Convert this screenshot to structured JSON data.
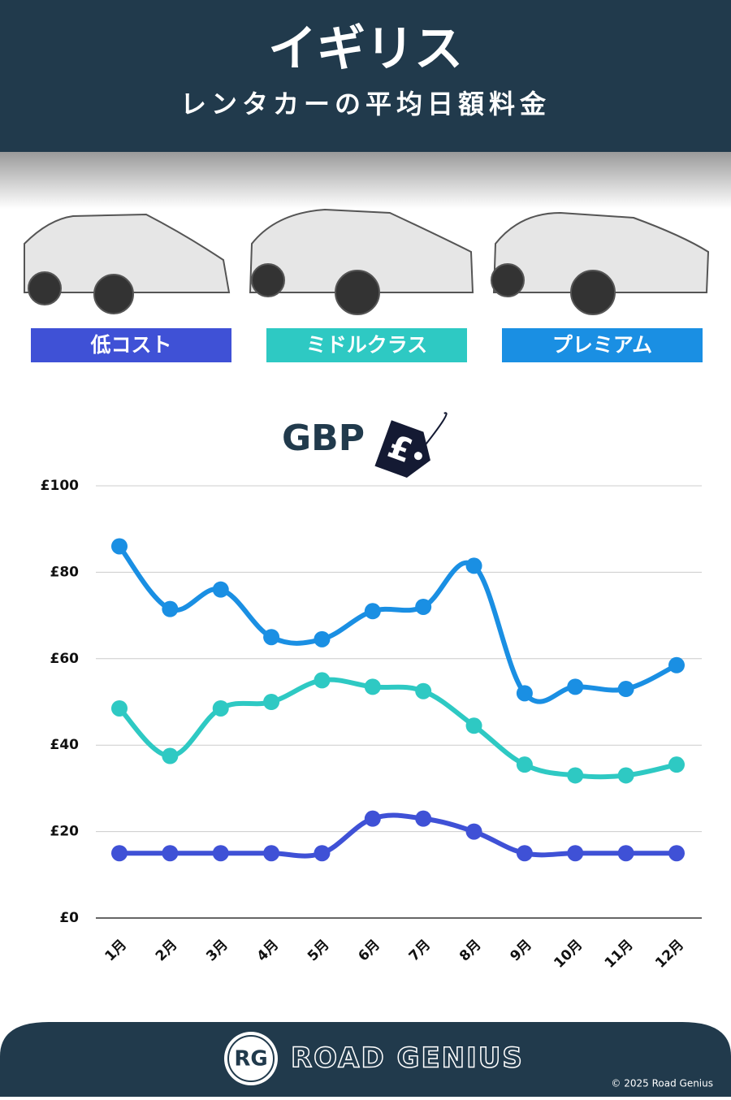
{
  "header": {
    "title": "イギリス",
    "subtitle": "レンタカーの平均日額料金"
  },
  "badge": {
    "text": "GBP",
    "symbol": "£"
  },
  "chart_data": {
    "type": "line",
    "categories": [
      "1月",
      "2月",
      "3月",
      "4月",
      "5月",
      "6月",
      "7月",
      "8月",
      "9月",
      "10月",
      "11月",
      "12月"
    ],
    "series": [
      {
        "name": "低コスト",
        "color": "#3f51d6",
        "values": [
          15,
          15,
          15,
          15,
          15,
          23,
          23,
          20,
          15,
          15,
          15,
          15
        ]
      },
      {
        "name": "ミドルクラス",
        "color": "#2ec9c3",
        "values": [
          48.5,
          37.5,
          48.5,
          50,
          55,
          53.5,
          52.5,
          44.5,
          35.5,
          33,
          33,
          35.5
        ]
      },
      {
        "name": "プレミアム",
        "color": "#1a8fe3",
        "values": [
          86,
          71.5,
          76,
          65,
          64.5,
          71,
          72,
          81.5,
          52,
          53.5,
          53,
          58.5
        ]
      }
    ],
    "ylim": [
      0,
      100
    ],
    "yticks": [
      {
        "value": 0,
        "label": "£0"
      },
      {
        "value": 20,
        "label": "£20"
      },
      {
        "value": 40,
        "label": "£40"
      },
      {
        "value": 60,
        "label": "£60"
      },
      {
        "value": 80,
        "label": "£80"
      },
      {
        "value": 100,
        "label": "£100"
      }
    ],
    "grid": true
  },
  "footer": {
    "logo": "RG",
    "brand": "ROAD GENIUS",
    "copyright": "© 2025 Road Genius"
  }
}
